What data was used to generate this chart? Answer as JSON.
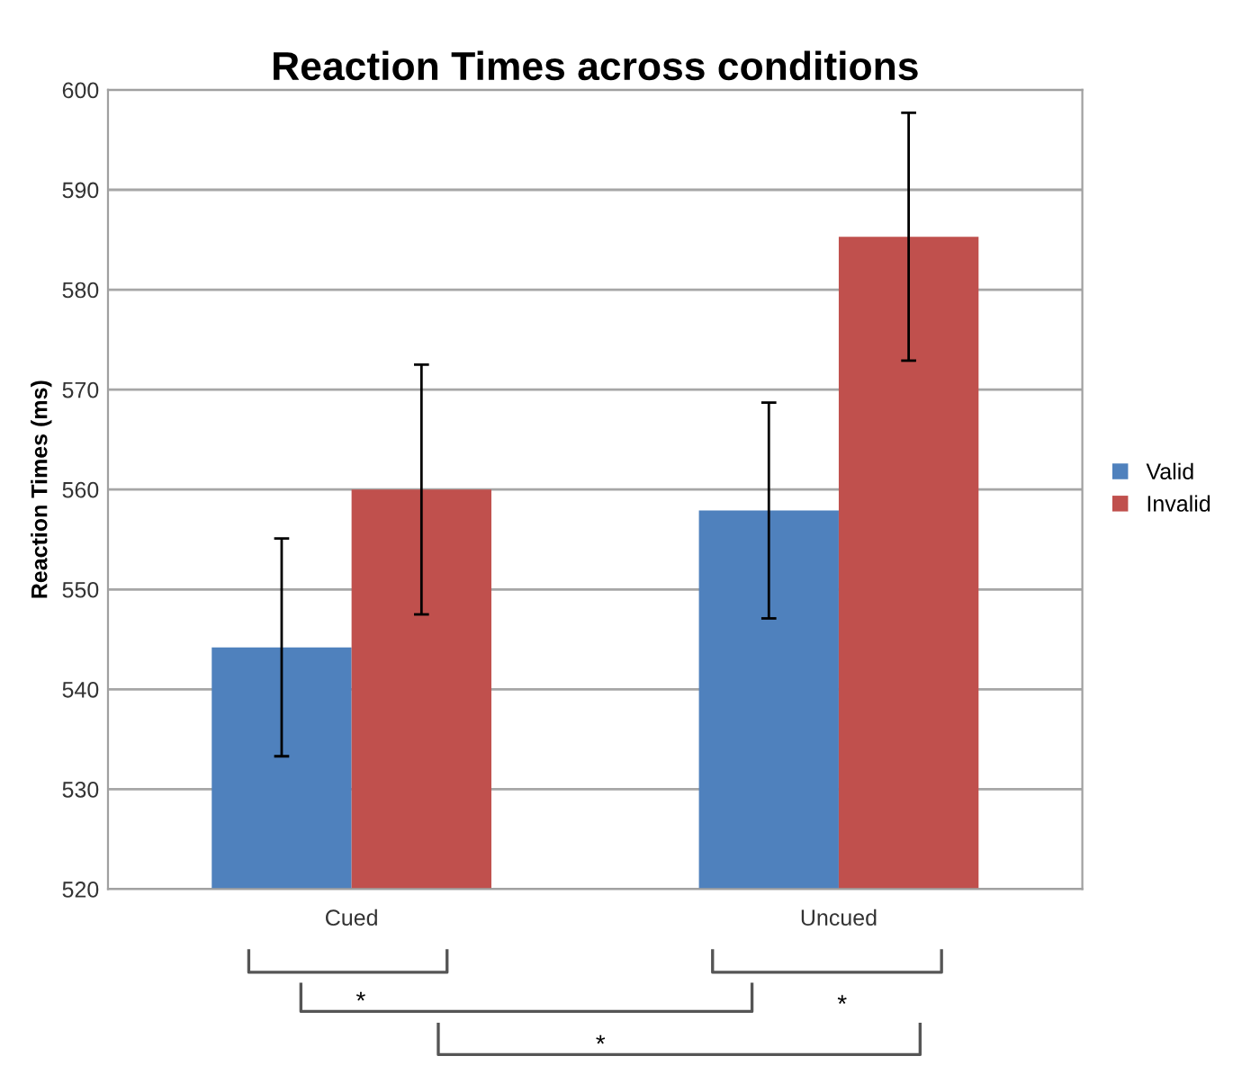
{
  "chart_data": {
    "type": "bar",
    "title": "Reaction Times across conditions",
    "ylabel": "Reaction Times (ms)",
    "categories": [
      "Cued",
      "Uncued"
    ],
    "series": [
      {
        "name": "Valid",
        "color": "#4f81bd",
        "values": [
          544.2,
          557.9
        ],
        "errors": [
          10.9,
          10.8
        ]
      },
      {
        "name": "Invalid",
        "color": "#c0504d",
        "values": [
          560.0,
          585.3
        ],
        "errors": [
          12.5,
          12.4
        ]
      }
    ],
    "ylim": [
      520,
      600
    ],
    "yticks": [
      520,
      530,
      540,
      550,
      560,
      570,
      580,
      590,
      600
    ],
    "grid": "y",
    "legend": "right",
    "annotations": [
      "*",
      "*",
      "*"
    ]
  }
}
